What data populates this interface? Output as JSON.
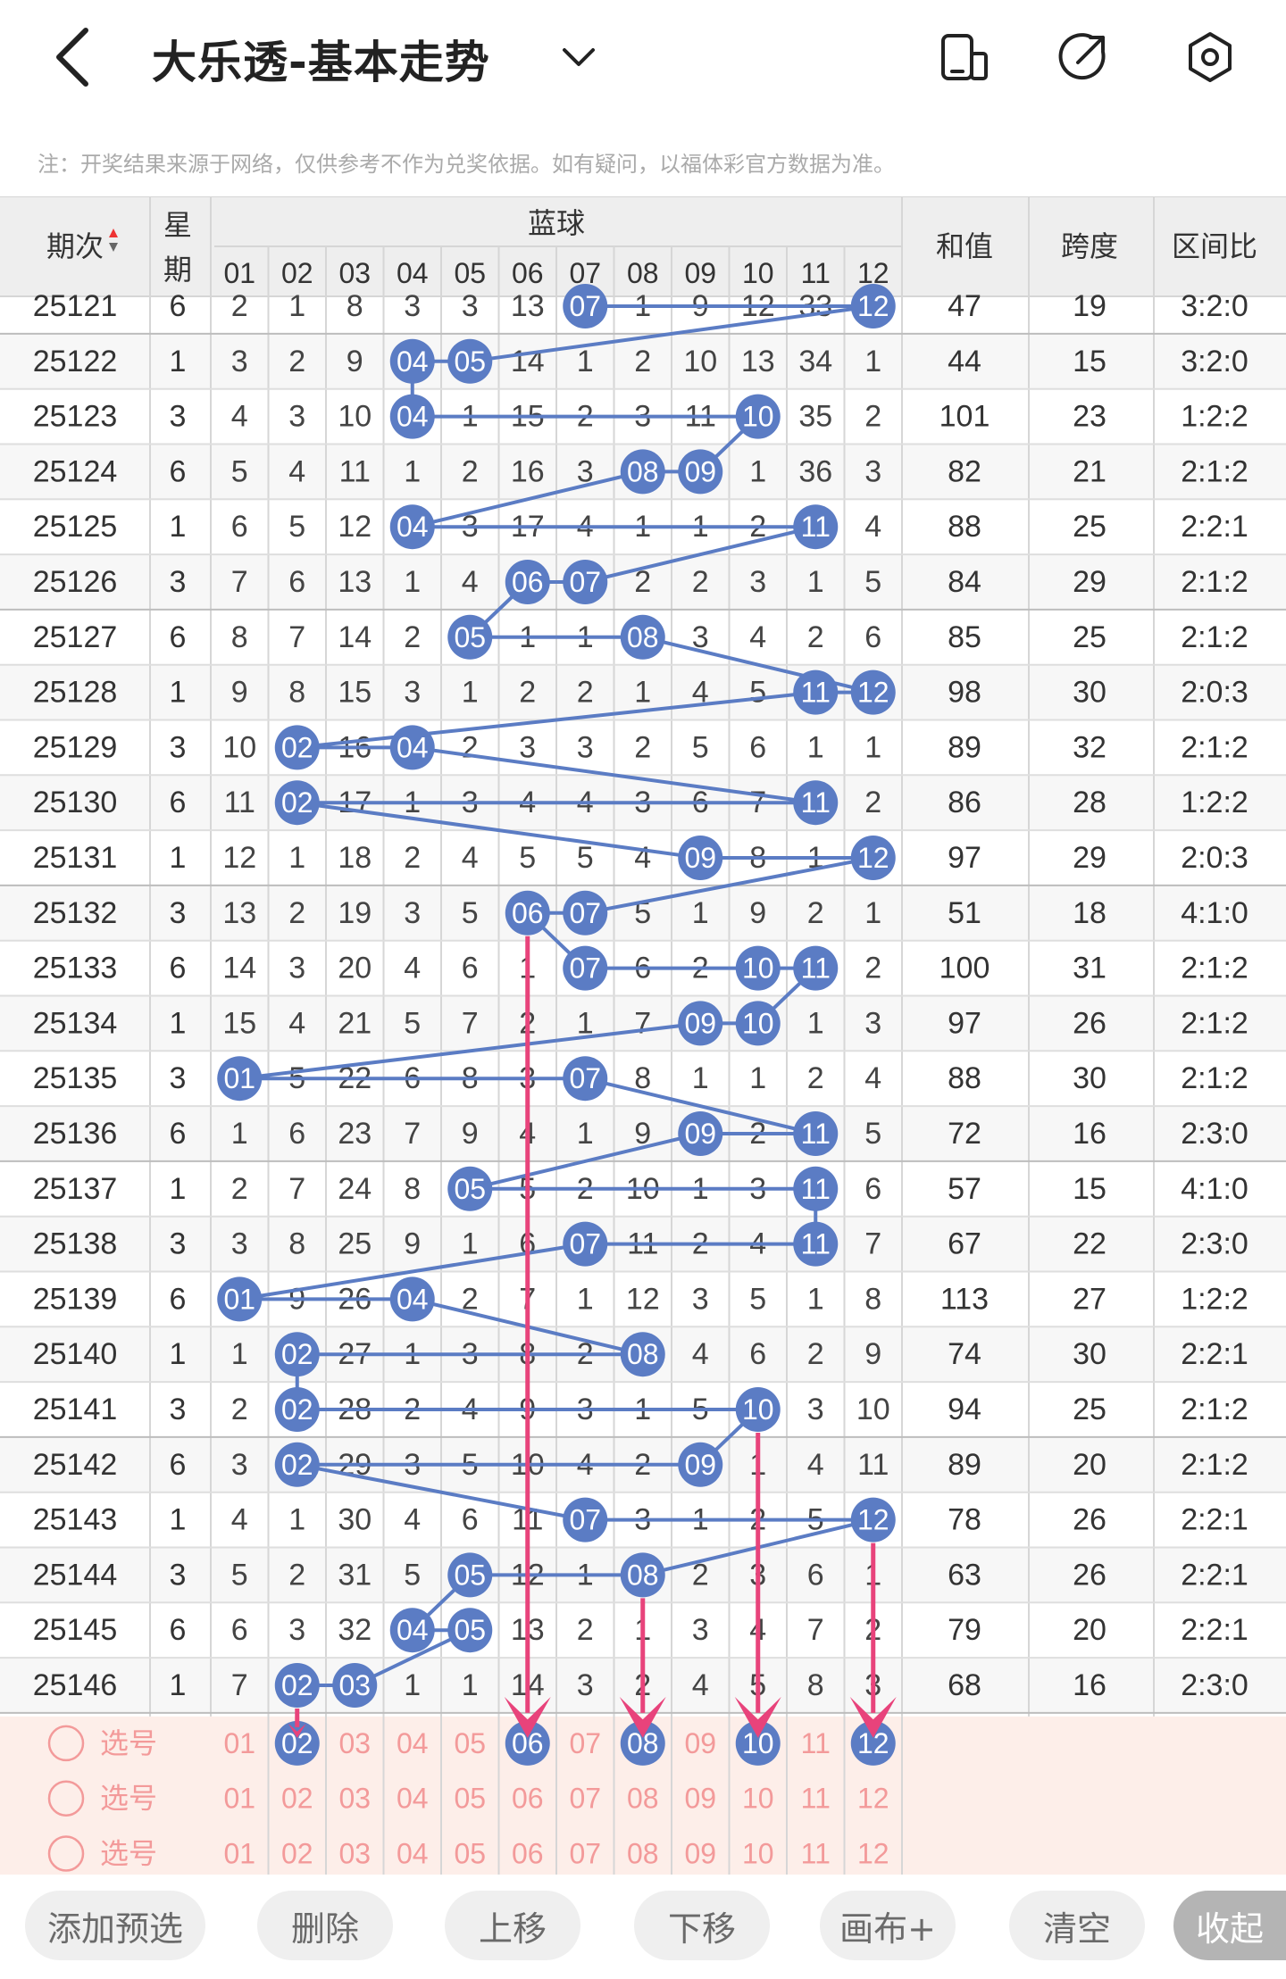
{
  "header": {
    "title": "大乐透-基本走势",
    "back_icon": "chevron-left-icon",
    "dropdown_icon": "chevron-down-icon",
    "icons": [
      "phone-icon",
      "share-icon",
      "settings-icon"
    ]
  },
  "note": "注：开奖结果来源于网络，仅供参考不作为兑奖依据。如有疑问，以福体彩官方数据为准。",
  "table": {
    "col_period": "期次",
    "col_week_top": "星",
    "col_week_bottom": "期",
    "col_blue": "蓝球",
    "col_sum": "和值",
    "col_span": "跨度",
    "col_ratio": "区间比",
    "numbers": [
      "01",
      "02",
      "03",
      "04",
      "05",
      "06",
      "07",
      "08",
      "09",
      "10",
      "11",
      "12"
    ],
    "rows": [
      {
        "period": "25121",
        "week": "6",
        "cells": [
          "2",
          "1",
          "8",
          "3",
          "3",
          "13",
          "07",
          "1",
          "9",
          "12",
          "33",
          "12"
        ],
        "sum": "47",
        "span": "19",
        "ratio": "3:2:0"
      },
      {
        "period": "25122",
        "week": "1",
        "cells": [
          "3",
          "2",
          "9",
          "04",
          "05",
          "14",
          "1",
          "2",
          "10",
          "13",
          "34",
          "1"
        ],
        "sum": "44",
        "span": "15",
        "ratio": "3:2:0"
      },
      {
        "period": "25123",
        "week": "3",
        "cells": [
          "4",
          "3",
          "10",
          "04",
          "1",
          "15",
          "2",
          "3",
          "11",
          "10",
          "35",
          "2"
        ],
        "sum": "101",
        "span": "23",
        "ratio": "1:2:2"
      },
      {
        "period": "25124",
        "week": "6",
        "cells": [
          "5",
          "4",
          "11",
          "1",
          "2",
          "16",
          "3",
          "08",
          "09",
          "1",
          "36",
          "3"
        ],
        "sum": "82",
        "span": "21",
        "ratio": "2:1:2"
      },
      {
        "period": "25125",
        "week": "1",
        "cells": [
          "6",
          "5",
          "12",
          "04",
          "3",
          "17",
          "4",
          "1",
          "1",
          "2",
          "11",
          "4"
        ],
        "sum": "88",
        "span": "25",
        "ratio": "2:2:1"
      },
      {
        "period": "25126",
        "week": "3",
        "cells": [
          "7",
          "6",
          "13",
          "1",
          "4",
          "06",
          "07",
          "2",
          "2",
          "3",
          "1",
          "5"
        ],
        "sum": "84",
        "span": "29",
        "ratio": "2:1:2"
      },
      {
        "period": "25127",
        "week": "6",
        "cells": [
          "8",
          "7",
          "14",
          "2",
          "05",
          "1",
          "1",
          "08",
          "3",
          "4",
          "2",
          "6"
        ],
        "sum": "85",
        "span": "25",
        "ratio": "2:1:2"
      },
      {
        "period": "25128",
        "week": "1",
        "cells": [
          "9",
          "8",
          "15",
          "3",
          "1",
          "2",
          "2",
          "1",
          "4",
          "5",
          "11",
          "12"
        ],
        "sum": "98",
        "span": "30",
        "ratio": "2:0:3"
      },
      {
        "period": "25129",
        "week": "3",
        "cells": [
          "10",
          "02",
          "16",
          "04",
          "2",
          "3",
          "3",
          "2",
          "5",
          "6",
          "1",
          "1"
        ],
        "sum": "89",
        "span": "32",
        "ratio": "2:1:2"
      },
      {
        "period": "25130",
        "week": "6",
        "cells": [
          "11",
          "02",
          "17",
          "1",
          "3",
          "4",
          "4",
          "3",
          "6",
          "7",
          "11",
          "2"
        ],
        "sum": "86",
        "span": "28",
        "ratio": "1:2:2"
      },
      {
        "period": "25131",
        "week": "1",
        "cells": [
          "12",
          "1",
          "18",
          "2",
          "4",
          "5",
          "5",
          "4",
          "09",
          "8",
          "1",
          "12"
        ],
        "sum": "97",
        "span": "29",
        "ratio": "2:0:3"
      },
      {
        "period": "25132",
        "week": "3",
        "cells": [
          "13",
          "2",
          "19",
          "3",
          "5",
          "06",
          "07",
          "5",
          "1",
          "9",
          "2",
          "1"
        ],
        "sum": "51",
        "span": "18",
        "ratio": "4:1:0"
      },
      {
        "period": "25133",
        "week": "6",
        "cells": [
          "14",
          "3",
          "20",
          "4",
          "6",
          "1",
          "07",
          "6",
          "2",
          "10",
          "11",
          "2"
        ],
        "sum": "100",
        "span": "31",
        "ratio": "2:1:2"
      },
      {
        "period": "25134",
        "week": "1",
        "cells": [
          "15",
          "4",
          "21",
          "5",
          "7",
          "2",
          "1",
          "7",
          "09",
          "10",
          "1",
          "3"
        ],
        "sum": "97",
        "span": "26",
        "ratio": "2:1:2"
      },
      {
        "period": "25135",
        "week": "3",
        "cells": [
          "01",
          "5",
          "22",
          "6",
          "8",
          "3",
          "07",
          "8",
          "1",
          "1",
          "2",
          "4"
        ],
        "sum": "88",
        "span": "30",
        "ratio": "2:1:2"
      },
      {
        "period": "25136",
        "week": "6",
        "cells": [
          "1",
          "6",
          "23",
          "7",
          "9",
          "4",
          "1",
          "9",
          "09",
          "2",
          "11",
          "5"
        ],
        "sum": "72",
        "span": "16",
        "ratio": "2:3:0"
      },
      {
        "period": "25137",
        "week": "1",
        "cells": [
          "2",
          "7",
          "24",
          "8",
          "05",
          "5",
          "2",
          "10",
          "1",
          "3",
          "11",
          "6"
        ],
        "sum": "57",
        "span": "15",
        "ratio": "4:1:0"
      },
      {
        "period": "25138",
        "week": "3",
        "cells": [
          "3",
          "8",
          "25",
          "9",
          "1",
          "6",
          "07",
          "11",
          "2",
          "4",
          "11",
          "7"
        ],
        "sum": "67",
        "span": "22",
        "ratio": "2:3:0"
      },
      {
        "period": "25139",
        "week": "6",
        "cells": [
          "01",
          "9",
          "26",
          "04",
          "2",
          "7",
          "1",
          "12",
          "3",
          "5",
          "1",
          "8"
        ],
        "sum": "113",
        "span": "27",
        "ratio": "1:2:2"
      },
      {
        "period": "25140",
        "week": "1",
        "cells": [
          "1",
          "02",
          "27",
          "1",
          "3",
          "8",
          "2",
          "08",
          "4",
          "6",
          "2",
          "9"
        ],
        "sum": "74",
        "span": "30",
        "ratio": "2:2:1"
      },
      {
        "period": "25141",
        "week": "3",
        "cells": [
          "2",
          "02",
          "28",
          "2",
          "4",
          "9",
          "3",
          "1",
          "5",
          "10",
          "3",
          "10"
        ],
        "sum": "94",
        "span": "25",
        "ratio": "2:1:2"
      },
      {
        "period": "25142",
        "week": "6",
        "cells": [
          "3",
          "02",
          "29",
          "3",
          "5",
          "10",
          "4",
          "2",
          "09",
          "1",
          "4",
          "11"
        ],
        "sum": "89",
        "span": "20",
        "ratio": "2:1:2"
      },
      {
        "period": "25143",
        "week": "1",
        "cells": [
          "4",
          "1",
          "30",
          "4",
          "6",
          "11",
          "07",
          "3",
          "1",
          "2",
          "5",
          "12"
        ],
        "sum": "78",
        "span": "26",
        "ratio": "2:2:1"
      },
      {
        "period": "25144",
        "week": "3",
        "cells": [
          "5",
          "2",
          "31",
          "5",
          "05",
          "12",
          "1",
          "08",
          "2",
          "3",
          "6",
          "1"
        ],
        "sum": "63",
        "span": "26",
        "ratio": "2:2:1"
      },
      {
        "period": "25145",
        "week": "6",
        "cells": [
          "6",
          "3",
          "32",
          "04",
          "05",
          "13",
          "2",
          "1",
          "3",
          "4",
          "7",
          "2"
        ],
        "sum": "79",
        "span": "20",
        "ratio": "2:2:1"
      },
      {
        "period": "25146",
        "week": "1",
        "cells": [
          "7",
          "02",
          "03",
          "1",
          "1",
          "14",
          "3",
          "2",
          "4",
          "5",
          "8",
          "3"
        ],
        "sum": "68",
        "span": "16",
        "ratio": "2:3:0"
      }
    ],
    "select_label": "选号",
    "pick_rows": [
      {
        "selected": [
          "02",
          "06",
          "08",
          "10",
          "12"
        ]
      },
      {
        "selected": []
      },
      {
        "selected": []
      }
    ]
  },
  "toolbar": {
    "add": "添加预选",
    "delete": "删除",
    "up": "上移",
    "down": "下移",
    "canvas": "画布+",
    "clear": "清空",
    "collapse": "收起"
  },
  "colors": {
    "ball": "#5b7cc4",
    "line": "#5b7cc4",
    "arrow": "#e8437b",
    "pick_bg": "#fdeee9",
    "pick_text": "#f39a9a",
    "header_bg": "#eeeeee"
  }
}
